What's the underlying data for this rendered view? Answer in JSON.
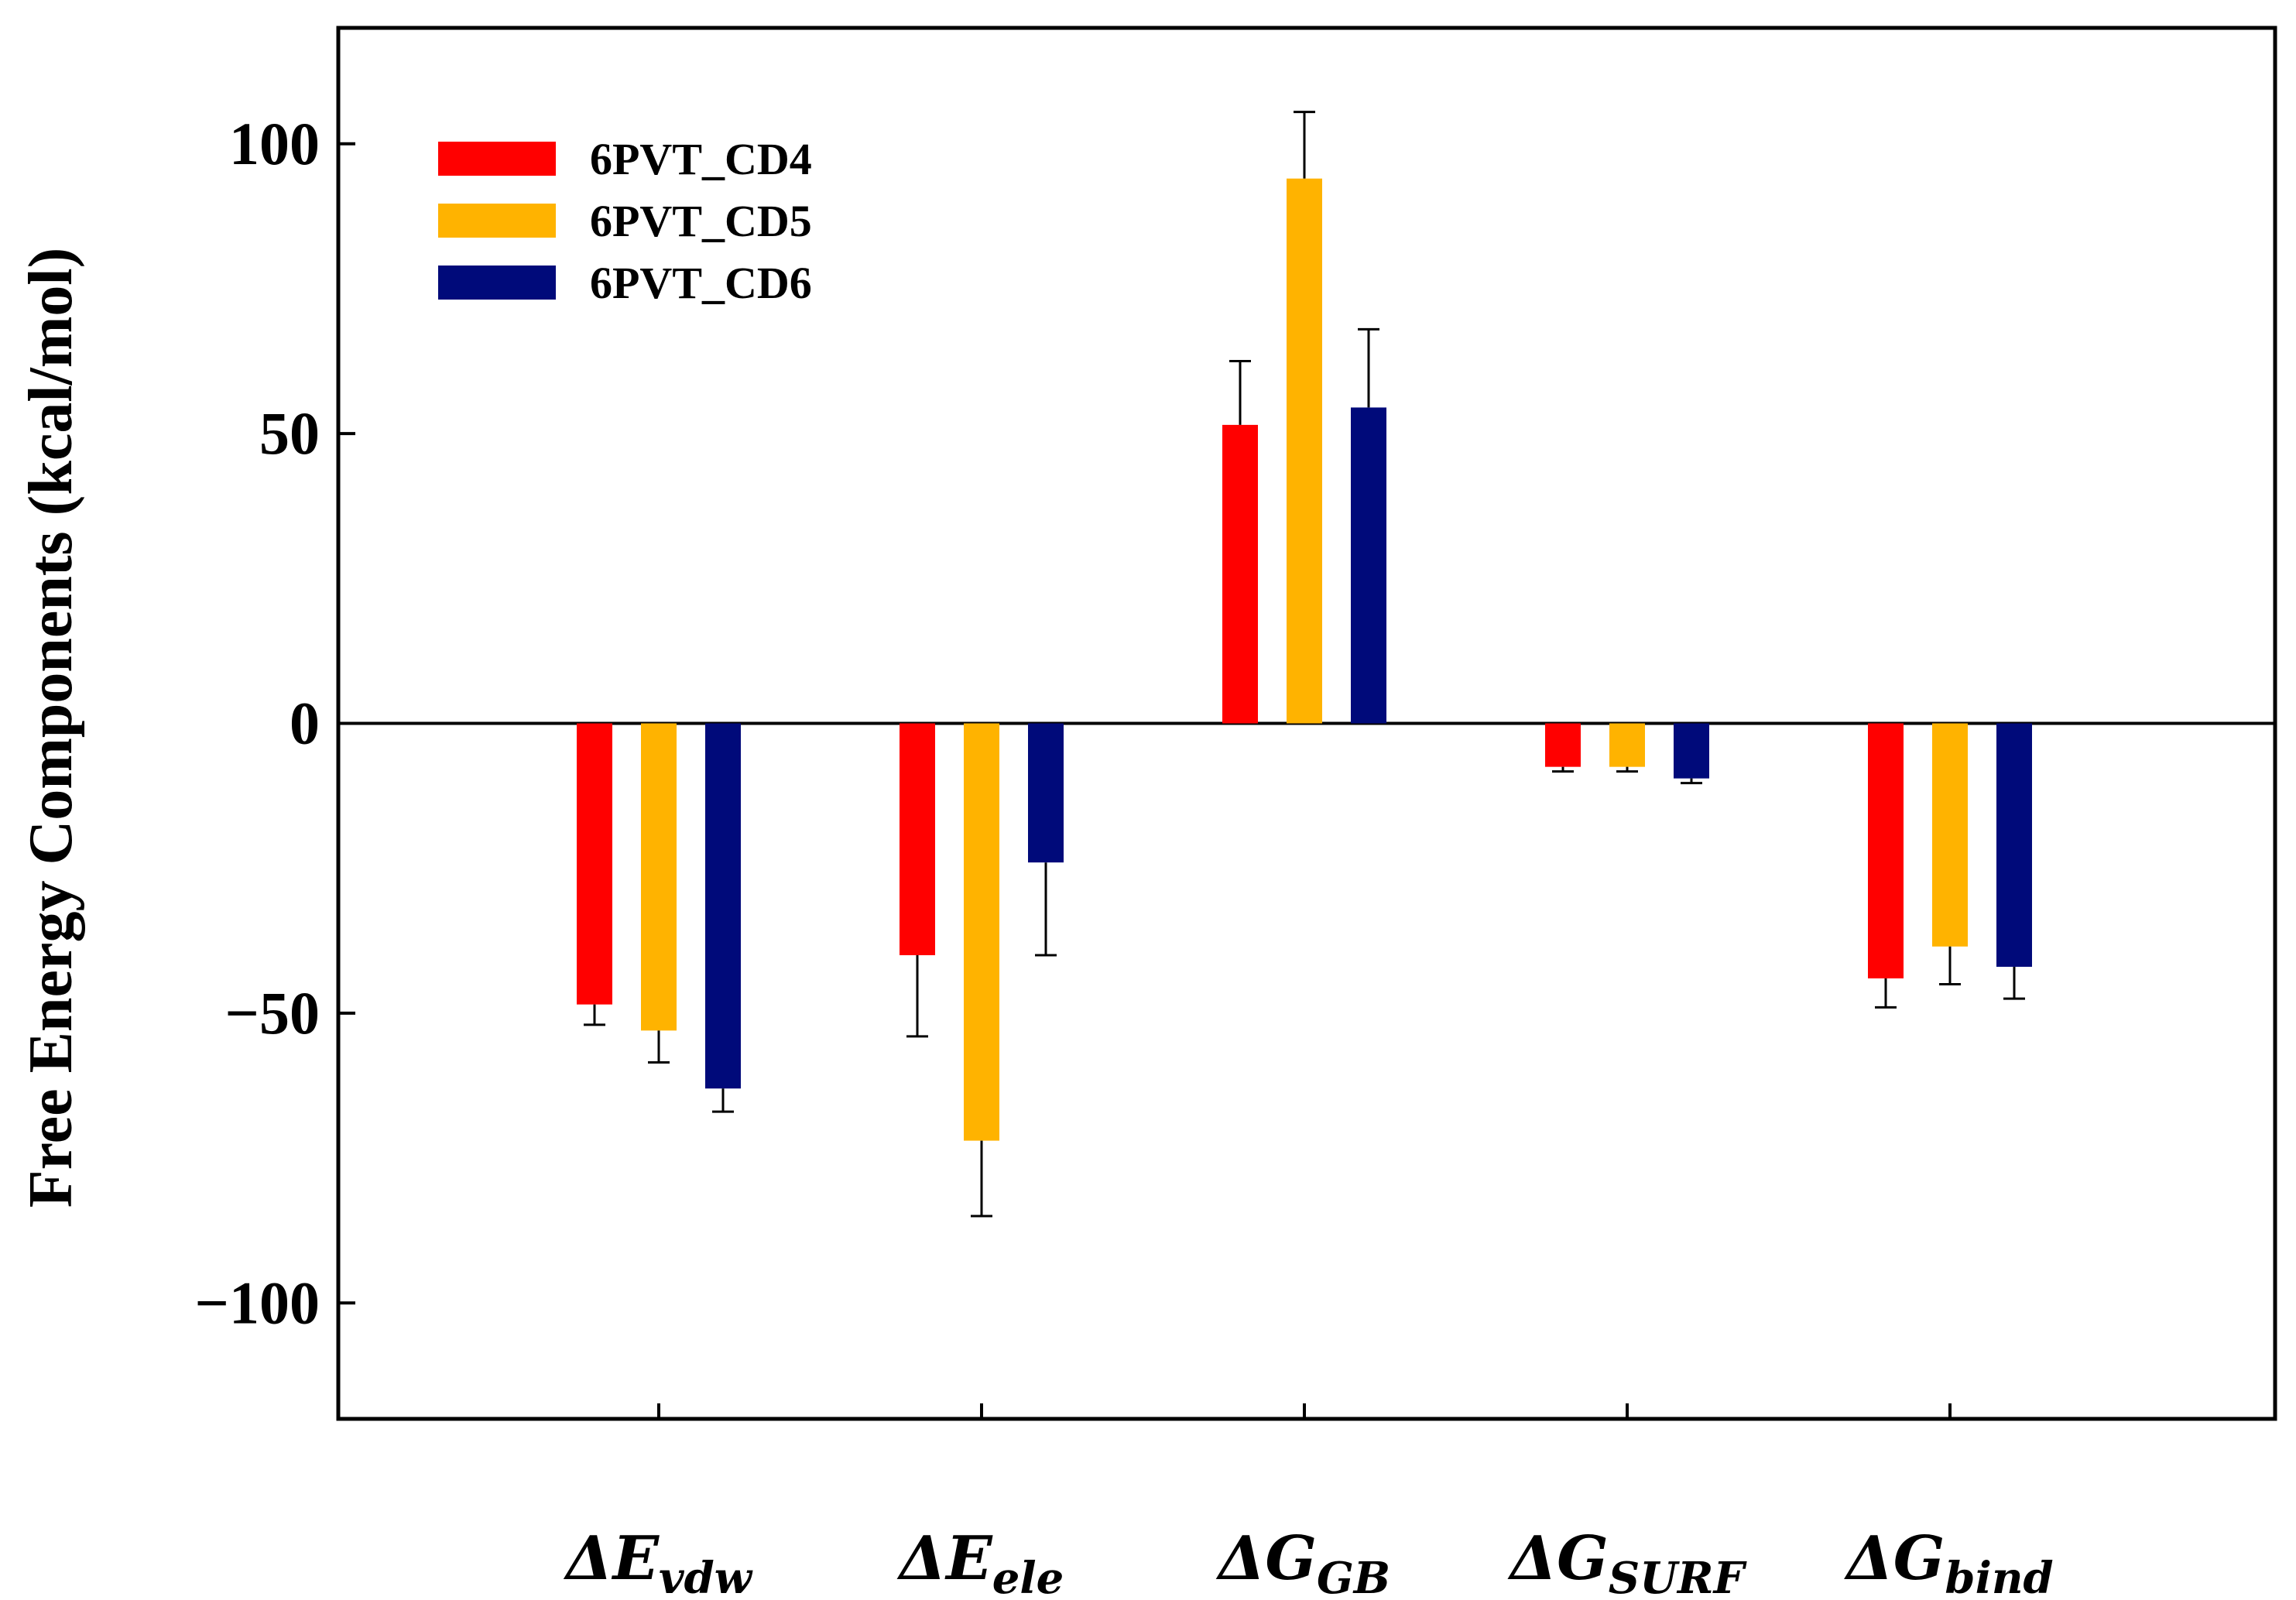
{
  "chart_data": {
    "type": "bar",
    "title": "",
    "ylabel": "Free Energy Components (kcal/mol)",
    "xlabel": "",
    "ylim": [
      -120,
      120
    ],
    "yticks": [
      -100,
      -50,
      0,
      50,
      100
    ],
    "ytick_labels": [
      "−100",
      "−50",
      "0",
      "50",
      "100"
    ],
    "categories": [
      {
        "main": "ΔE",
        "sub": "vdw"
      },
      {
        "main": "ΔE",
        "sub": "ele"
      },
      {
        "main": "ΔG",
        "sub": "GB"
      },
      {
        "main": "ΔG",
        "sub": "SURF"
      },
      {
        "main": "ΔG",
        "sub": "bind"
      }
    ],
    "series": [
      {
        "name": "6PVT_CD4",
        "color": "#ff0000",
        "values": [
          -48.5,
          -40,
          51.5,
          -7.5,
          -44
        ],
        "errors": [
          3.5,
          14,
          11,
          0.8,
          5
        ]
      },
      {
        "name": "6PVT_CD5",
        "color": "#ffb300",
        "values": [
          -53,
          -72,
          94,
          -7.5,
          -38.5
        ],
        "errors": [
          5.5,
          13,
          11.5,
          0.8,
          6.5
        ]
      },
      {
        "name": "6PVT_CD6",
        "color": "#000a7a",
        "values": [
          -63,
          -24,
          54.5,
          -9.5,
          -42
        ],
        "errors": [
          4,
          16,
          13.5,
          0.8,
          5.5
        ]
      }
    ],
    "legend_position": "top-left",
    "grid": false
  }
}
